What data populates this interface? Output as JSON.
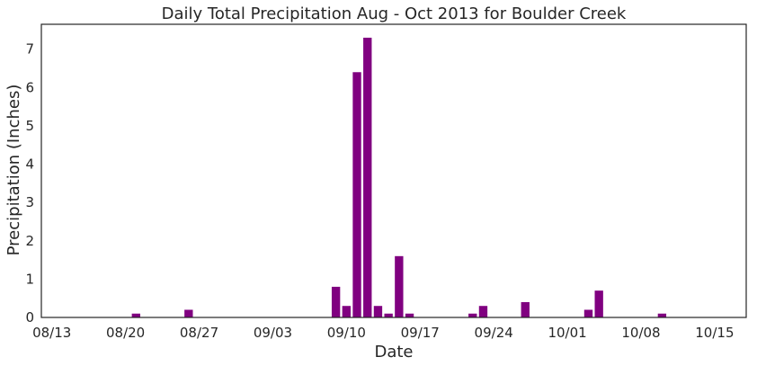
{
  "chart_data": {
    "type": "bar",
    "title": "Daily Total Precipitation Aug - Oct 2013 for Boulder Creek",
    "xlabel": "Date",
    "ylabel": "Precipitation (Inches)",
    "xlim": [
      "2013-08-12",
      "2013-10-18"
    ],
    "ylim": [
      0,
      7.65
    ],
    "yticks": [
      0,
      1,
      2,
      3,
      4,
      5,
      6,
      7
    ],
    "xticks": [
      {
        "date": "2013-08-13",
        "label": "08/13"
      },
      {
        "date": "2013-08-20",
        "label": "08/20"
      },
      {
        "date": "2013-08-27",
        "label": "08/27"
      },
      {
        "date": "2013-09-03",
        "label": "09/03"
      },
      {
        "date": "2013-09-10",
        "label": "09/10"
      },
      {
        "date": "2013-09-17",
        "label": "09/17"
      },
      {
        "date": "2013-09-24",
        "label": "09/24"
      },
      {
        "date": "2013-10-01",
        "label": "10/01"
      },
      {
        "date": "2013-10-08",
        "label": "10/08"
      },
      {
        "date": "2013-10-15",
        "label": "10/15"
      }
    ],
    "bar_color": "#800080",
    "grid": false,
    "points": [
      {
        "date": "2013-08-21",
        "value": 0.1
      },
      {
        "date": "2013-08-26",
        "value": 0.2
      },
      {
        "date": "2013-09-09",
        "value": 0.8
      },
      {
        "date": "2013-09-10",
        "value": 0.3
      },
      {
        "date": "2013-09-11",
        "value": 6.4
      },
      {
        "date": "2013-09-12",
        "value": 7.3
      },
      {
        "date": "2013-09-13",
        "value": 0.3
      },
      {
        "date": "2013-09-14",
        "value": 0.1
      },
      {
        "date": "2013-09-15",
        "value": 1.6
      },
      {
        "date": "2013-09-16",
        "value": 0.1
      },
      {
        "date": "2013-09-22",
        "value": 0.1
      },
      {
        "date": "2013-09-23",
        "value": 0.3
      },
      {
        "date": "2013-09-27",
        "value": 0.4
      },
      {
        "date": "2013-10-03",
        "value": 0.2
      },
      {
        "date": "2013-10-04",
        "value": 0.7
      },
      {
        "date": "2013-10-10",
        "value": 0.1
      }
    ]
  }
}
